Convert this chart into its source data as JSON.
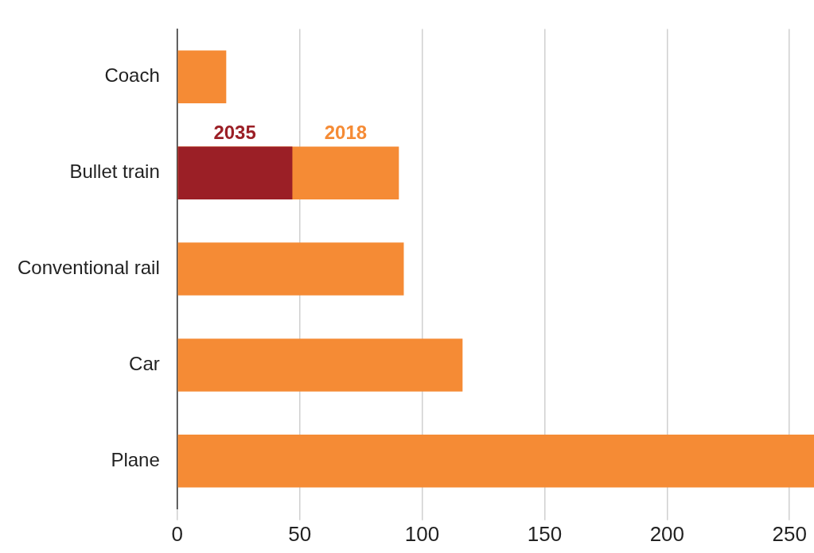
{
  "chart_data": {
    "type": "bar",
    "orientation": "horizontal",
    "categories": [
      "Coach",
      "Bullet train",
      "Conventional rail",
      "Car",
      "Plane"
    ],
    "series": [
      {
        "name": "2018",
        "color": "#f58b35",
        "values": [
          20,
          90.5,
          92.5,
          116.5,
          260
        ]
      },
      {
        "name": "2035",
        "color": "#9b1f26",
        "values": [
          null,
          47,
          null,
          null,
          null
        ]
      }
    ],
    "xlim": [
      0,
      260
    ],
    "xticks": [
      0,
      50,
      100,
      150,
      200,
      250
    ],
    "grid": "x",
    "legend": false
  }
}
